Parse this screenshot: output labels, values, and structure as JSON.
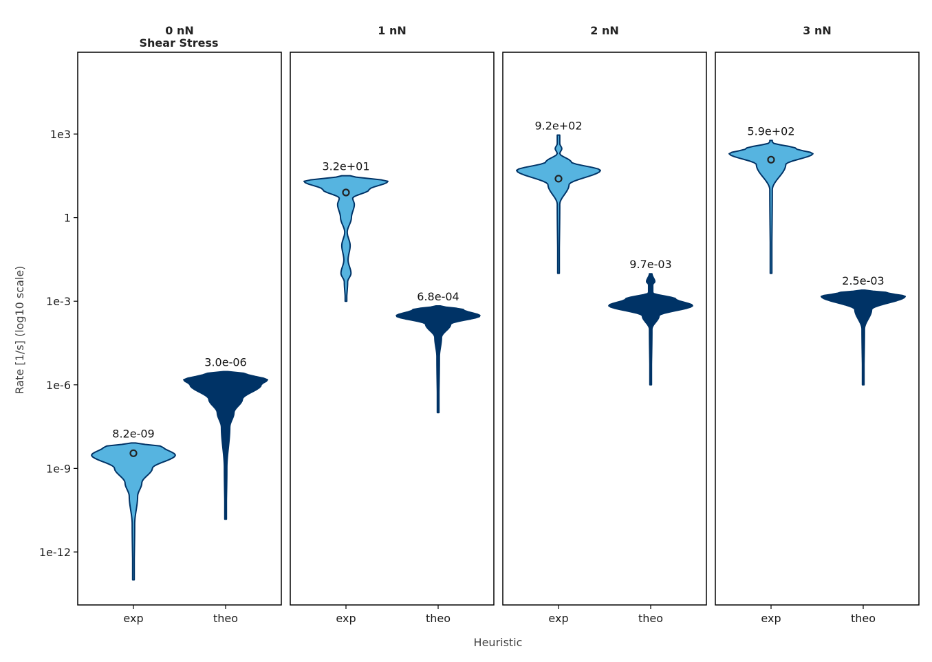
{
  "chart_data": {
    "type": "violin",
    "super_title": "Shear Stress",
    "xlabel": "Heuristic",
    "ylabel": "Rate [1/s] (log10 scale)",
    "yscale": "log10",
    "ylim": [
      1e-14,
      1000000.0
    ],
    "yticks": [
      {
        "value": 1000.0,
        "label": "1e3"
      },
      {
        "value": 1,
        "label": "1"
      },
      {
        "value": 0.001,
        "label": "1e-3"
      },
      {
        "value": 1e-06,
        "label": "1e-6"
      },
      {
        "value": 1e-09,
        "label": "1e-9"
      },
      {
        "value": 1e-12,
        "label": "1e-12"
      }
    ],
    "categories": [
      "exp",
      "theo"
    ],
    "colors": {
      "exp": "#56b4e0",
      "theo": "#003366",
      "outline": "#003366"
    },
    "panels": [
      {
        "title": "0 nN",
        "violins": [
          {
            "category": "exp",
            "annotation": "8.2e-09",
            "median": 3.5e-09,
            "max": 8.2e-09,
            "min": 1e-13,
            "profile": [
              [
                1e-13,
                0.015
              ],
              [
                1e-11,
                0.03
              ],
              [
                1e-10,
                0.1
              ],
              [
                3e-10,
                0.2
              ],
              [
                1e-09,
                0.45
              ],
              [
                3e-09,
                1.0
              ],
              [
                6e-09,
                0.7
              ],
              [
                8.2e-09,
                0.05
              ]
            ]
          },
          {
            "category": "theo",
            "annotation": "3.0e-06",
            "max": 3e-06,
            "min": 1.5e-11,
            "profile": [
              [
                1.5e-11,
                0.015
              ],
              [
                1e-09,
                0.03
              ],
              [
                3e-08,
                0.1
              ],
              [
                1e-07,
                0.2
              ],
              [
                3e-07,
                0.4
              ],
              [
                1e-06,
                0.85
              ],
              [
                1.5e-06,
                1.0
              ],
              [
                2.5e-06,
                0.5
              ],
              [
                3e-06,
                0.05
              ]
            ]
          }
        ]
      },
      {
        "title": "1 nN",
        "violins": [
          {
            "category": "exp",
            "annotation": "3.2e+01",
            "median": 8.0,
            "max": 32,
            "min": 0.001,
            "profile": [
              [
                0.001,
                0.015
              ],
              [
                0.005,
                0.04
              ],
              [
                0.01,
                0.12
              ],
              [
                0.03,
                0.05
              ],
              [
                0.1,
                0.1
              ],
              [
                0.3,
                0.03
              ],
              [
                1,
                0.13
              ],
              [
                3,
                0.2
              ],
              [
                5,
                0.16
              ],
              [
                10,
                0.55
              ],
              [
                20,
                1.0
              ],
              [
                32,
                0.1
              ]
            ]
          },
          {
            "category": "theo",
            "annotation": "6.8e-04",
            "max": 0.00068,
            "min": 1e-07,
            "profile": [
              [
                1e-07,
                0.015
              ],
              [
                1e-05,
                0.03
              ],
              [
                5e-05,
                0.08
              ],
              [
                0.00015,
                0.3
              ],
              [
                0.0003,
                1.0
              ],
              [
                0.0005,
                0.6
              ],
              [
                0.00068,
                0.05
              ]
            ]
          }
        ]
      },
      {
        "title": "2 nN",
        "violins": [
          {
            "category": "exp",
            "annotation": "9.2e+02",
            "median": 25,
            "max": 920,
            "min": 0.01,
            "profile": [
              [
                0.01,
                0.015
              ],
              [
                3,
                0.03
              ],
              [
                15,
                0.25
              ],
              [
                50,
                1.0
              ],
              [
                100,
                0.3
              ],
              [
                200,
                0.03
              ],
              [
                300,
                0.08
              ],
              [
                450,
                0.03
              ],
              [
                920,
                0.03
              ]
            ]
          },
          {
            "category": "theo",
            "annotation": "9.7e-03",
            "max": 0.0097,
            "min": 1e-06,
            "profile": [
              [
                1e-06,
                0.015
              ],
              [
                0.0001,
                0.03
              ],
              [
                0.0003,
                0.2
              ],
              [
                0.0007,
                1.0
              ],
              [
                0.0012,
                0.6
              ],
              [
                0.002,
                0.05
              ],
              [
                0.004,
                0.05
              ],
              [
                0.005,
                0.1
              ],
              [
                0.0097,
                0.03
              ]
            ]
          }
        ]
      },
      {
        "title": "3 nN",
        "violins": [
          {
            "category": "exp",
            "annotation": "5.9e+02",
            "median": 120,
            "max": 590,
            "min": 0.01,
            "profile": [
              [
                0.01,
                0.015
              ],
              [
                10,
                0.03
              ],
              [
                80,
                0.35
              ],
              [
                200,
                1.0
              ],
              [
                300,
                0.6
              ],
              [
                500,
                0.03
              ],
              [
                590,
                0.03
              ]
            ]
          },
          {
            "category": "theo",
            "annotation": "2.5e-03",
            "max": 0.0025,
            "min": 1e-06,
            "profile": [
              [
                1e-06,
                0.015
              ],
              [
                0.0001,
                0.03
              ],
              [
                0.0005,
                0.2
              ],
              [
                0.0015,
                1.0
              ],
              [
                0.002,
                0.6
              ],
              [
                0.0025,
                0.05
              ]
            ]
          }
        ]
      }
    ]
  }
}
